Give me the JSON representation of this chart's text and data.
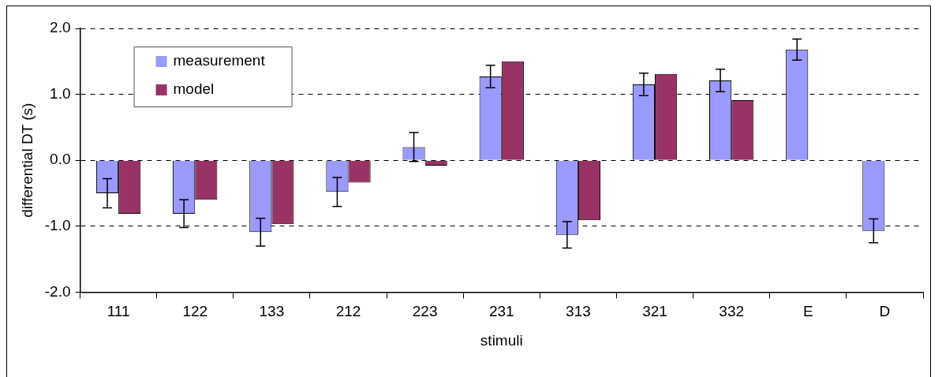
{
  "chart_data": {
    "type": "bar",
    "xlabel": "stimuli",
    "ylabel": "differential DT (s)",
    "categories": [
      "111",
      "122",
      "133",
      "212",
      "223",
      "231",
      "313",
      "321",
      "332",
      "E",
      "D"
    ],
    "series": [
      {
        "name": "measurement",
        "color": "#9999ff",
        "values": [
          -0.5,
          -0.81,
          -1.09,
          -0.48,
          0.2,
          1.27,
          -1.13,
          1.15,
          1.21,
          1.68,
          -1.07
        ],
        "errors": [
          0.22,
          0.21,
          0.21,
          0.22,
          0.22,
          0.17,
          0.2,
          0.17,
          0.17,
          0.16,
          0.18
        ]
      },
      {
        "name": "model",
        "color": "#993366",
        "values": [
          -0.81,
          -0.6,
          -0.97,
          -0.34,
          -0.08,
          1.5,
          -0.91,
          1.31,
          0.91,
          null,
          null
        ]
      }
    ],
    "ylim": [
      -2,
      2
    ],
    "yticks": [
      {
        "value": -2,
        "label": "-2.0"
      },
      {
        "value": -1,
        "label": "-1.0"
      },
      {
        "value": 0,
        "label": "0.0"
      },
      {
        "value": 1,
        "label": "1.0"
      },
      {
        "value": 2,
        "label": "2.0"
      }
    ],
    "grid": "y",
    "legend": "top left"
  }
}
